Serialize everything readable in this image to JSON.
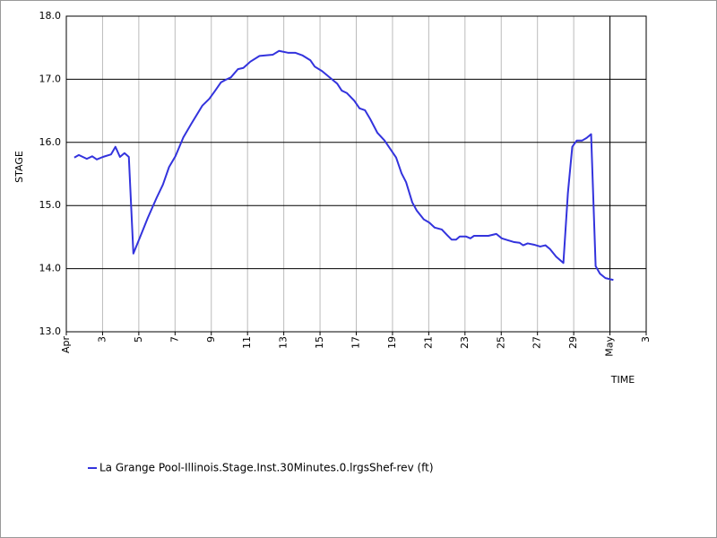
{
  "chart_data": {
    "type": "line",
    "x_label": "TIME",
    "y_label": "STAGE",
    "xlim": [
      1,
      33
    ],
    "xticks": [
      {
        "value": 1,
        "label": "Apr"
      },
      3,
      5,
      7,
      9,
      11,
      13,
      15,
      17,
      19,
      21,
      23,
      25,
      27,
      29,
      {
        "value": 31,
        "label": "May"
      },
      {
        "value": 33,
        "label": "3"
      }
    ],
    "ylim": [
      13,
      18
    ],
    "yticks": [
      {
        "value": 13,
        "label": "13.0"
      },
      {
        "value": 14,
        "label": "14.0"
      },
      {
        "value": 15,
        "label": "15.0"
      },
      {
        "value": 16,
        "label": "16.0"
      },
      {
        "value": 17,
        "label": "17.0"
      },
      {
        "value": 18,
        "label": "18.0"
      }
    ],
    "grid": true,
    "marker_x": 31,
    "legend": "bottom-left",
    "series": [
      {
        "name": "La Grange Pool-Illinois.Stage.Inst.30Minutes.0.lrgsShef-rev (ft)",
        "color": "#3333dd",
        "x": [
          1.44,
          1.69,
          2.13,
          2.43,
          2.68,
          3.02,
          3.47,
          3.71,
          3.96,
          4.21,
          4.45,
          4.7,
          5.0,
          5.49,
          5.98,
          6.33,
          6.67,
          7.02,
          7.46,
          7.91,
          8.5,
          8.89,
          9.19,
          9.53,
          9.78,
          10.08,
          10.47,
          10.77,
          11.16,
          11.66,
          12.4,
          12.74,
          13.23,
          13.63,
          14.02,
          14.47,
          14.71,
          15.11,
          15.7,
          15.95,
          16.2,
          16.49,
          16.89,
          17.18,
          17.48,
          17.77,
          18.17,
          18.56,
          19.2,
          19.5,
          19.75,
          20.09,
          20.34,
          20.73,
          21.03,
          21.33,
          21.72,
          22.02,
          22.26,
          22.51,
          22.71,
          23.05,
          23.3,
          23.5,
          24.29,
          24.73,
          25.03,
          25.37,
          25.72,
          26.01,
          26.21,
          26.46,
          26.8,
          27.15,
          27.44,
          27.69,
          28.03,
          28.43,
          28.68,
          28.92,
          29.17,
          29.47,
          29.71,
          29.96,
          30.21,
          30.45,
          30.75,
          31.19
        ],
        "values": [
          15.76,
          15.8,
          15.74,
          15.78,
          15.73,
          15.77,
          15.81,
          15.93,
          15.77,
          15.83,
          15.77,
          14.24,
          14.45,
          14.8,
          15.12,
          15.33,
          15.61,
          15.78,
          16.08,
          16.3,
          16.58,
          16.69,
          16.81,
          16.95,
          16.99,
          17.03,
          17.16,
          17.18,
          17.28,
          17.37,
          17.39,
          17.45,
          17.42,
          17.42,
          17.38,
          17.3,
          17.2,
          17.13,
          16.99,
          16.93,
          16.82,
          16.78,
          16.66,
          16.54,
          16.51,
          16.37,
          16.15,
          16.03,
          15.76,
          15.51,
          15.37,
          15.05,
          14.92,
          14.78,
          14.73,
          14.65,
          14.62,
          14.53,
          14.46,
          14.46,
          14.51,
          14.51,
          14.48,
          14.52,
          14.52,
          14.55,
          14.48,
          14.45,
          14.42,
          14.41,
          14.37,
          14.4,
          14.38,
          14.35,
          14.37,
          14.31,
          14.19,
          14.09,
          15.2,
          15.93,
          16.03,
          16.03,
          16.07,
          16.13,
          14.04,
          13.92,
          13.85,
          13.82
        ]
      }
    ]
  }
}
